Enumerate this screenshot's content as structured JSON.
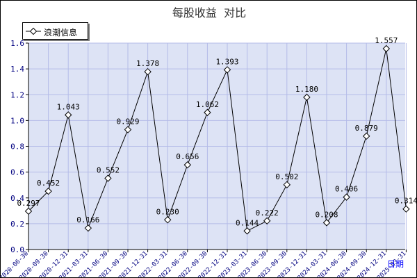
{
  "chart_data": {
    "type": "line",
    "title": "每股收益  对比",
    "xlabel": "日期",
    "ylabel": "",
    "ylim": [
      0,
      1.6
    ],
    "yticks": [
      "0.0",
      "0.2",
      "0.4",
      "0.6",
      "0.8",
      "1.0",
      "1.2",
      "1.4",
      "1.6"
    ],
    "categories": [
      "2020-06-30",
      "2020-09-30",
      "2020-12-31",
      "2021-03-31",
      "2021-06-30",
      "2021-09-30",
      "2021-12-31",
      "2022-03-31",
      "2022-06-30",
      "2022-09-30",
      "2022-12-31",
      "2023-03-31",
      "2023-06-30",
      "2023-09-30",
      "2023-12-31",
      "2024-03-31",
      "2024-06-30",
      "2024-09-30",
      "2024-12-31",
      "2025-03-31"
    ],
    "series": [
      {
        "name": "浪潮信息",
        "values": [
          0.297,
          0.452,
          1.043,
          0.166,
          0.552,
          0.929,
          1.378,
          0.23,
          0.656,
          1.062,
          1.393,
          0.144,
          0.222,
          0.502,
          1.18,
          0.208,
          0.406,
          0.879,
          1.557,
          0.314
        ],
        "labels": [
          "0.297",
          "0.452",
          "1.043",
          "0.166",
          "0.552",
          "0.929",
          "1.378",
          "0.230",
          "0.656",
          "1.062",
          "1.393",
          "0.144",
          "0.222",
          "0.502",
          "1.180",
          "0.208",
          "0.406",
          "0.879",
          "1.557",
          "0.314"
        ]
      }
    ],
    "grid": true,
    "legend": "top-left",
    "colors": {
      "plot_background": "#dde3f5",
      "grid": "#b4bbe8",
      "line": "#000000",
      "tick_label": "#000080",
      "xlabel": "#0000ff"
    }
  }
}
